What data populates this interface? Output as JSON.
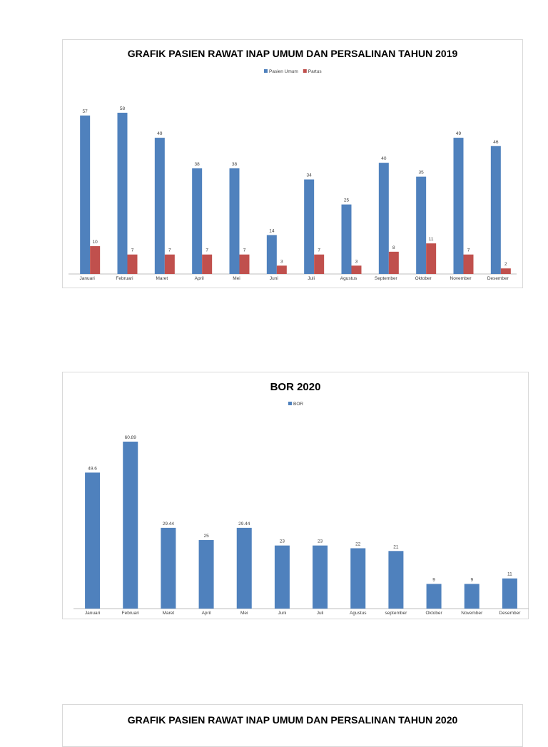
{
  "chart_data": [
    {
      "type": "bar",
      "title": "GRAFIK PASIEN RAWAT INAP UMUM DAN PERSALINAN TAHUN 2019",
      "categories": [
        "Januari",
        "Februari",
        "Maret",
        "April",
        "Mei",
        "Juni",
        "Juli",
        "Agustus",
        "September",
        "Oktober",
        "November",
        "Desember"
      ],
      "series": [
        {
          "name": "Pasien Umum",
          "color": "#4f81bd",
          "values": [
            57,
            58,
            49,
            38,
            38,
            14,
            34,
            25,
            40,
            35,
            49,
            46
          ]
        },
        {
          "name": "Partus",
          "color": "#c0504d",
          "values": [
            10,
            7,
            7,
            7,
            7,
            3,
            7,
            3,
            8,
            11,
            7,
            2
          ]
        }
      ],
      "data_labels": true,
      "grid": false,
      "legend": "top"
    },
    {
      "type": "bar",
      "title": "BOR 2020",
      "categories": [
        "Januari",
        "Februari",
        "Maret",
        "April",
        "Mei",
        "Juni",
        "Juli",
        "Agustus",
        "september",
        "Oktober",
        "November",
        "Desember"
      ],
      "series": [
        {
          "name": "BOR",
          "color": "#4f81bd",
          "values": [
            49.6,
            60.89,
            29.44,
            25,
            29.44,
            23,
            23,
            22,
            21,
            9,
            9,
            11
          ]
        }
      ],
      "data_labels": true,
      "grid": false,
      "legend": "top"
    },
    {
      "type": "bar",
      "title": "GRAFIK PASIEN RAWAT INAP UMUM DAN PERSALINAN TAHUN 2020"
    }
  ]
}
